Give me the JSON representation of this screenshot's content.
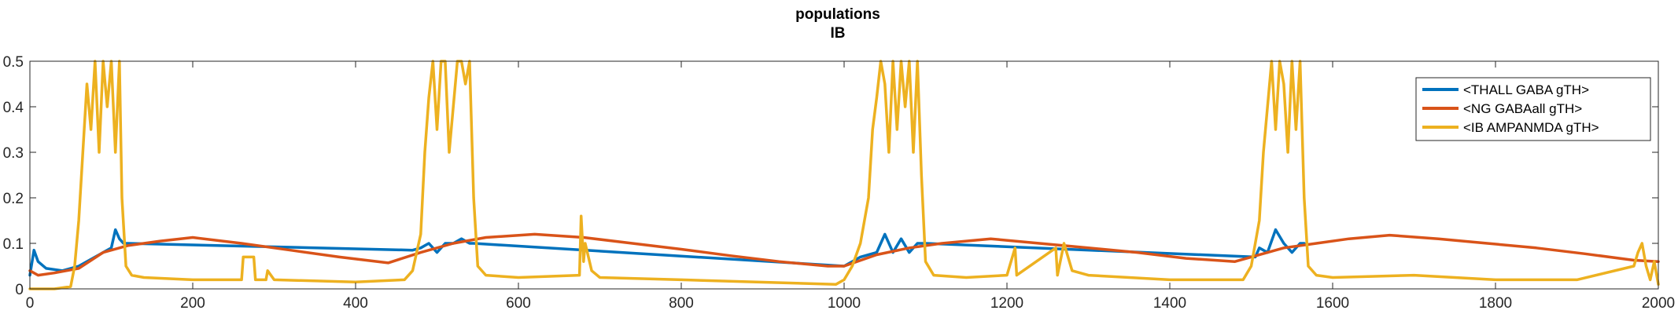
{
  "chart_data": {
    "type": "line",
    "title": "populations",
    "subtitle": "IB",
    "xlabel": "",
    "ylabel": "",
    "xlim": [
      0,
      2000
    ],
    "ylim": [
      0,
      0.5
    ],
    "xticks": [
      0,
      200,
      400,
      600,
      800,
      1000,
      1200,
      1400,
      1600,
      1800,
      2000
    ],
    "xtick_labels": [
      "0",
      "200",
      "400",
      "600",
      "800",
      "1000",
      "1200",
      "1400",
      "1600",
      "1800",
      "2000"
    ],
    "yticks": [
      0,
      0.1,
      0.2,
      0.3,
      0.4,
      0.5
    ],
    "ytick_labels": [
      "0",
      "0.1",
      "0.2",
      "0.3",
      "0.4",
      "0.5"
    ],
    "grid": false,
    "legend_position": "top-right",
    "series": [
      {
        "name": "<THALL GABA gTH>",
        "color": "#0072BD",
        "x": [
          0,
          5,
          10,
          20,
          40,
          60,
          80,
          100,
          105,
          110,
          115,
          120,
          470,
          480,
          490,
          500,
          510,
          520,
          530,
          540,
          545,
          1000,
          1020,
          1040,
          1050,
          1060,
          1070,
          1080,
          1090,
          1100,
          1505,
          1510,
          1520,
          1530,
          1540,
          1550,
          1560,
          1565
        ],
        "y": [
          0.03,
          0.085,
          0.06,
          0.045,
          0.04,
          0.05,
          0.07,
          0.09,
          0.13,
          0.11,
          0.1,
          0.1,
          0.085,
          0.09,
          0.1,
          0.08,
          0.1,
          0.1,
          0.11,
          0.1,
          0.1,
          0.05,
          0.07,
          0.08,
          0.12,
          0.08,
          0.11,
          0.08,
          0.1,
          0.1,
          0.07,
          0.09,
          0.08,
          0.13,
          0.1,
          0.08,
          0.1,
          0.1
        ]
      },
      {
        "name": "<NG GABAall gTH>",
        "color": "#D95319",
        "x": [
          0,
          10,
          30,
          60,
          90,
          120,
          160,
          200,
          260,
          320,
          380,
          440,
          480,
          520,
          560,
          620,
          680,
          740,
          800,
          860,
          920,
          980,
          1000,
          1040,
          1080,
          1120,
          1180,
          1240,
          1300,
          1360,
          1420,
          1480,
          1500,
          1540,
          1580,
          1620,
          1670,
          1730,
          1790,
          1850,
          1910,
          1970,
          2000
        ],
        "y": [
          0.04,
          0.03,
          0.035,
          0.045,
          0.08,
          0.095,
          0.105,
          0.113,
          0.1,
          0.085,
          0.07,
          0.057,
          0.08,
          0.1,
          0.113,
          0.12,
          0.113,
          0.1,
          0.087,
          0.073,
          0.06,
          0.05,
          0.05,
          0.075,
          0.09,
          0.1,
          0.11,
          0.1,
          0.09,
          0.08,
          0.067,
          0.06,
          0.07,
          0.09,
          0.1,
          0.11,
          0.118,
          0.11,
          0.1,
          0.09,
          0.077,
          0.063,
          0.06
        ]
      },
      {
        "name": "<IB AMPANMDA gTH>",
        "color": "#EDB120",
        "x": [
          0,
          10,
          30,
          50,
          55,
          60,
          65,
          70,
          75,
          80,
          85,
          90,
          95,
          100,
          105,
          110,
          113,
          118,
          125,
          140,
          200,
          260,
          262,
          275,
          277,
          290,
          292,
          300,
          400,
          460,
          470,
          480,
          485,
          490,
          495,
          500,
          505,
          510,
          515,
          520,
          525,
          530,
          535,
          540,
          545,
          550,
          560,
          600,
          675,
          677,
          680,
          682,
          690,
          700,
          800,
          990,
          1000,
          1010,
          1020,
          1030,
          1035,
          1040,
          1045,
          1050,
          1055,
          1060,
          1065,
          1070,
          1075,
          1080,
          1085,
          1090,
          1095,
          1100,
          1110,
          1150,
          1200,
          1210,
          1212,
          1260,
          1262,
          1270,
          1280,
          1300,
          1400,
          1490,
          1500,
          1510,
          1515,
          1520,
          1525,
          1530,
          1535,
          1540,
          1545,
          1550,
          1555,
          1560,
          1565,
          1570,
          1580,
          1600,
          1700,
          1800,
          1900,
          1970,
          1975,
          1980,
          1985,
          1990,
          1995,
          2000
        ],
        "y": [
          0.0,
          0.0,
          0.0,
          0.005,
          0.05,
          0.15,
          0.3,
          0.45,
          0.35,
          0.5,
          0.3,
          0.5,
          0.4,
          0.5,
          0.3,
          0.5,
          0.2,
          0.05,
          0.03,
          0.025,
          0.02,
          0.02,
          0.07,
          0.07,
          0.02,
          0.02,
          0.04,
          0.02,
          0.015,
          0.02,
          0.04,
          0.12,
          0.3,
          0.42,
          0.5,
          0.35,
          0.5,
          0.5,
          0.3,
          0.4,
          0.5,
          0.5,
          0.45,
          0.5,
          0.2,
          0.05,
          0.03,
          0.025,
          0.03,
          0.16,
          0.06,
          0.1,
          0.04,
          0.025,
          0.02,
          0.01,
          0.02,
          0.05,
          0.1,
          0.2,
          0.35,
          0.42,
          0.5,
          0.45,
          0.3,
          0.5,
          0.35,
          0.5,
          0.4,
          0.5,
          0.3,
          0.5,
          0.25,
          0.06,
          0.03,
          0.025,
          0.03,
          0.09,
          0.03,
          0.09,
          0.03,
          0.1,
          0.04,
          0.03,
          0.02,
          0.02,
          0.05,
          0.15,
          0.3,
          0.4,
          0.5,
          0.35,
          0.5,
          0.45,
          0.3,
          0.5,
          0.35,
          0.5,
          0.2,
          0.05,
          0.03,
          0.025,
          0.03,
          0.02,
          0.02,
          0.05,
          0.08,
          0.1,
          0.05,
          0.02,
          0.06,
          0.01
        ]
      }
    ]
  }
}
